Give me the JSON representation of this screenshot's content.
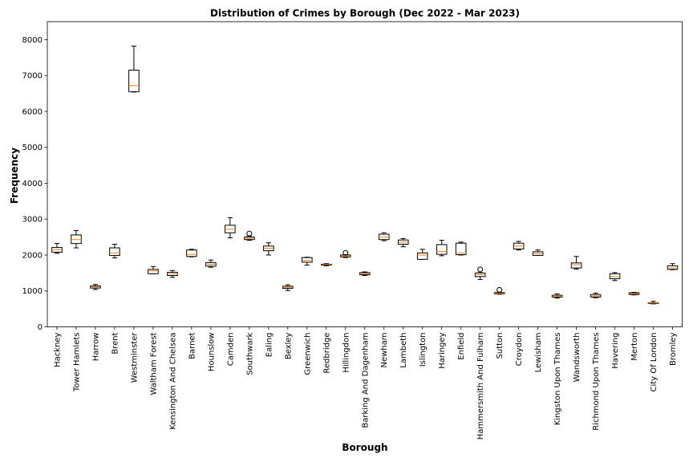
{
  "chart_data": {
    "type": "box",
    "title": "Distribution of Crimes by Borough (Dec 2022 - Mar 2023)",
    "xlabel": "Borough",
    "ylabel": "Frequency",
    "ylim": [
      0,
      8500
    ],
    "yticks": [
      0,
      1000,
      2000,
      3000,
      4000,
      5000,
      6000,
      7000,
      8000
    ],
    "grid": false,
    "colors": {
      "box": "#000000",
      "median": "#ff7f0e",
      "flier": "#000000"
    },
    "boxes": [
      {
        "category": "Hackney",
        "whislo": 2050,
        "q1": 2080,
        "median": 2150,
        "q3": 2210,
        "whishi": 2320,
        "fliers": []
      },
      {
        "category": "Tower Hamlets",
        "whislo": 2200,
        "q1": 2320,
        "median": 2430,
        "q3": 2560,
        "whishi": 2680,
        "fliers": []
      },
      {
        "category": "Harrow",
        "whislo": 1040,
        "q1": 1080,
        "median": 1110,
        "q3": 1140,
        "whishi": 1180,
        "fliers": []
      },
      {
        "category": "Brent",
        "whislo": 1920,
        "q1": 1990,
        "median": 2060,
        "q3": 2200,
        "whishi": 2300,
        "fliers": []
      },
      {
        "category": "Westminster",
        "whislo": 6540,
        "q1": 6550,
        "median": 6720,
        "q3": 7150,
        "whishi": 7820,
        "fliers": []
      },
      {
        "category": "Waltham Forest",
        "whislo": 1480,
        "q1": 1480,
        "median": 1560,
        "q3": 1600,
        "whishi": 1680,
        "fliers": []
      },
      {
        "category": "Kensington And Chelsea",
        "whislo": 1380,
        "q1": 1430,
        "median": 1480,
        "q3": 1520,
        "whishi": 1570,
        "fliers": []
      },
      {
        "category": "Barnet",
        "whislo": 1950,
        "q1": 1960,
        "median": 2020,
        "q3": 2140,
        "whishi": 2160,
        "fliers": []
      },
      {
        "category": "Hounslow",
        "whislo": 1660,
        "q1": 1690,
        "median": 1740,
        "q3": 1790,
        "whishi": 1860,
        "fliers": []
      },
      {
        "category": "Camden",
        "whislo": 2480,
        "q1": 2620,
        "median": 2720,
        "q3": 2830,
        "whishi": 3040,
        "fliers": []
      },
      {
        "category": "Southwark",
        "whislo": 2410,
        "q1": 2430,
        "median": 2460,
        "q3": 2500,
        "whishi": 2520,
        "fliers": [
          2600
        ]
      },
      {
        "category": "Ealing",
        "whislo": 2000,
        "q1": 2120,
        "median": 2190,
        "q3": 2250,
        "whishi": 2340,
        "fliers": []
      },
      {
        "category": "Bexley",
        "whislo": 1010,
        "q1": 1070,
        "median": 1100,
        "q3": 1130,
        "whishi": 1170,
        "fliers": []
      },
      {
        "category": "Greenwich",
        "whislo": 1720,
        "q1": 1800,
        "median": 1850,
        "q3": 1930,
        "whishi": 1940,
        "fliers": []
      },
      {
        "category": "Redbridge",
        "whislo": 1700,
        "q1": 1720,
        "median": 1735,
        "q3": 1745,
        "whishi": 1760,
        "fliers": []
      },
      {
        "category": "Hillingdon",
        "whislo": 1930,
        "q1": 1950,
        "median": 1970,
        "q3": 2000,
        "whishi": 2010,
        "fliers": [
          2060
        ]
      },
      {
        "category": "Barking And Dagenham",
        "whislo": 1430,
        "q1": 1450,
        "median": 1480,
        "q3": 1510,
        "whishi": 1530,
        "fliers": []
      },
      {
        "category": "Newham",
        "whislo": 2400,
        "q1": 2430,
        "median": 2500,
        "q3": 2580,
        "whishi": 2620,
        "fliers": []
      },
      {
        "category": "Lambeth",
        "whislo": 2230,
        "q1": 2300,
        "median": 2360,
        "q3": 2420,
        "whishi": 2460,
        "fliers": []
      },
      {
        "category": "Islington",
        "whislo": 1880,
        "q1": 1880,
        "median": 2000,
        "q3": 2060,
        "whishi": 2160,
        "fliers": []
      },
      {
        "category": "Haringey",
        "whislo": 1980,
        "q1": 2020,
        "median": 2100,
        "q3": 2290,
        "whishi": 2410,
        "fliers": []
      },
      {
        "category": "Enfield",
        "whislo": 2000,
        "q1": 2010,
        "median": 2050,
        "q3": 2330,
        "whishi": 2360,
        "fliers": []
      },
      {
        "category": "Hammersmith And Fulham",
        "whislo": 1320,
        "q1": 1400,
        "median": 1450,
        "q3": 1500,
        "whishi": 1510,
        "fliers": [
          1600
        ]
      },
      {
        "category": "Sutton",
        "whislo": 910,
        "q1": 920,
        "median": 935,
        "q3": 955,
        "whishi": 965,
        "fliers": [
          1030
        ]
      },
      {
        "category": "Croydon",
        "whislo": 2140,
        "q1": 2170,
        "median": 2250,
        "q3": 2330,
        "whishi": 2380,
        "fliers": []
      },
      {
        "category": "Lewisham",
        "whislo": 1990,
        "q1": 1990,
        "median": 2040,
        "q3": 2090,
        "whishi": 2140,
        "fliers": []
      },
      {
        "category": "Kingston Upon Thames",
        "whislo": 800,
        "q1": 830,
        "median": 850,
        "q3": 880,
        "whishi": 920,
        "fliers": []
      },
      {
        "category": "Wandsworth",
        "whislo": 1610,
        "q1": 1640,
        "median": 1730,
        "q3": 1780,
        "whishi": 1960,
        "fliers": []
      },
      {
        "category": "Richmond Upon Thames",
        "whislo": 810,
        "q1": 830,
        "median": 860,
        "q3": 900,
        "whishi": 940,
        "fliers": []
      },
      {
        "category": "Havering",
        "whislo": 1290,
        "q1": 1340,
        "median": 1400,
        "q3": 1480,
        "whishi": 1510,
        "fliers": []
      },
      {
        "category": "Merton",
        "whislo": 890,
        "q1": 900,
        "median": 925,
        "q3": 950,
        "whishi": 960,
        "fliers": []
      },
      {
        "category": "City Of London",
        "whislo": 640,
        "q1": 650,
        "median": 660,
        "q3": 670,
        "whishi": 710,
        "fliers": []
      },
      {
        "category": "Bromley",
        "whislo": 1590,
        "q1": 1600,
        "median": 1640,
        "q3": 1700,
        "whishi": 1760,
        "fliers": []
      }
    ]
  }
}
